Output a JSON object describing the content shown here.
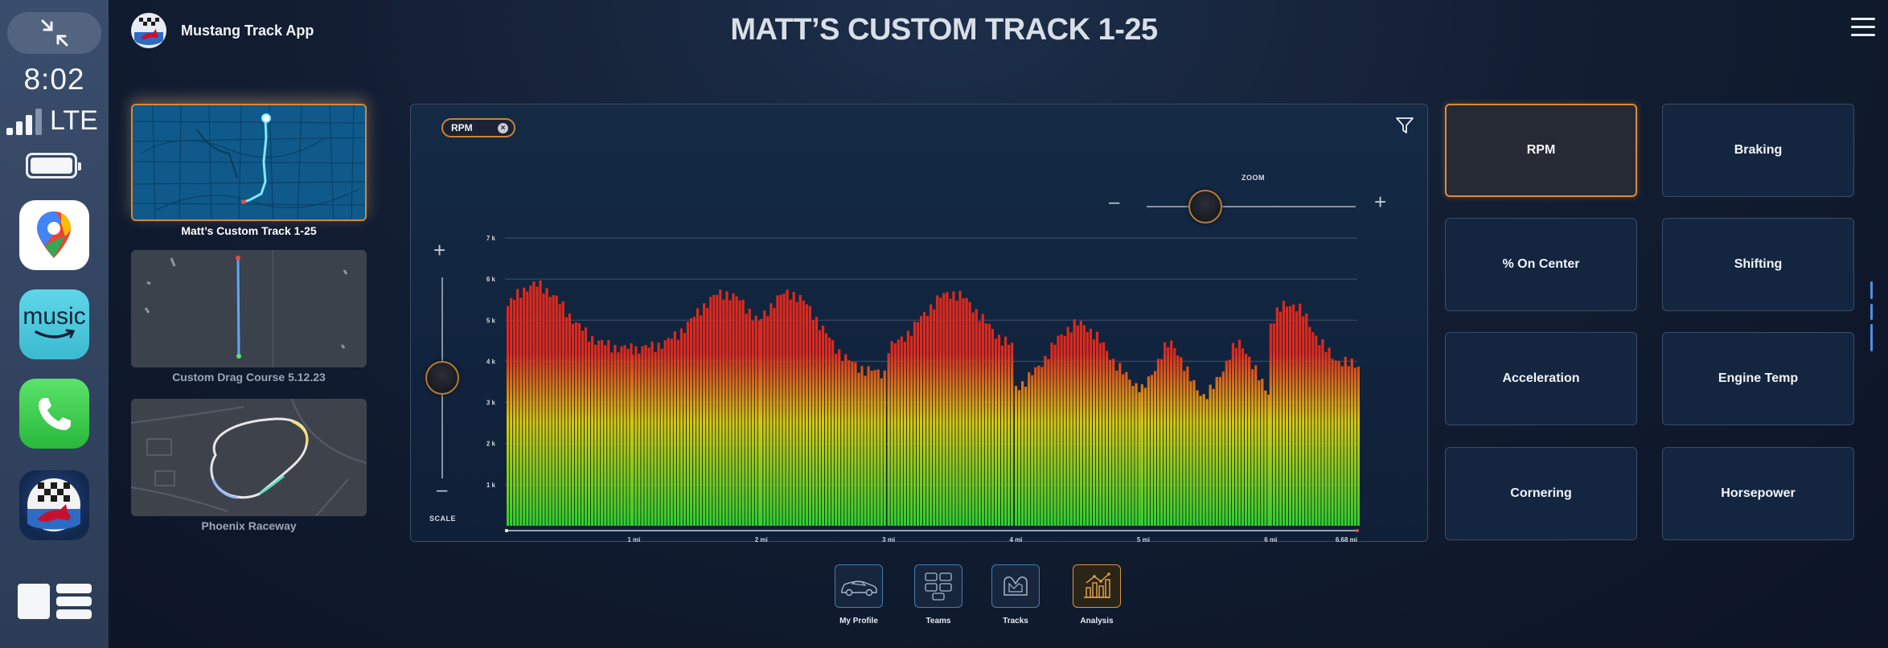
{
  "status": {
    "time": "8:02",
    "network": "LTE",
    "signal_bars": 3
  },
  "dock": {
    "apps": [
      {
        "name": "Maps",
        "icon": "maps-icon"
      },
      {
        "name": "Amazon Music",
        "icon": "amazon-music-icon",
        "label": "music"
      },
      {
        "name": "Phone",
        "icon": "phone-icon"
      },
      {
        "name": "Mustang Track App",
        "icon": "mustang-app-icon"
      }
    ]
  },
  "header": {
    "app_name": "Mustang Track App",
    "title": "MATT’S CUSTOM TRACK 1-25"
  },
  "tracks": [
    {
      "label": "Matt’s Custom Track 1-25",
      "selected": true
    },
    {
      "label": "Custom Drag Course 5.12.23",
      "selected": false
    },
    {
      "label": "Phoenix Raceway",
      "selected": false
    }
  ],
  "chart_panel": {
    "chip_label": "RPM",
    "zoom_label": "ZOOM",
    "zoom_minus": "–",
    "zoom_plus": "+",
    "zoom_level": 0.28,
    "scale_label": "SCALE",
    "scale_plus": "+",
    "scale_minus": "–",
    "scale_level": 0.5
  },
  "chart_data": {
    "type": "bar",
    "ylim": [
      0,
      7000
    ],
    "xlim": [
      0,
      6.68
    ],
    "y_ticks": [
      {
        "value": 1000,
        "label": "1 k"
      },
      {
        "value": 2000,
        "label": "2 k"
      },
      {
        "value": 3000,
        "label": "3 k"
      },
      {
        "value": 4000,
        "label": "4 k"
      },
      {
        "value": 5000,
        "label": "5 k"
      },
      {
        "value": 6000,
        "label": "6 k"
      },
      {
        "value": 7000,
        "label": "7 k"
      }
    ],
    "x_ticks": [
      {
        "value": 1,
        "label": "1 mi"
      },
      {
        "value": 2,
        "label": "2 mi"
      },
      {
        "value": 3,
        "label": "3 mi"
      },
      {
        "value": 4,
        "label": "4 mi"
      },
      {
        "value": 5,
        "label": "5 mi"
      },
      {
        "value": 6,
        "label": "6 mi"
      },
      {
        "value": 6.68,
        "label": "6.68 mi"
      }
    ],
    "segments": [
      {
        "start": 0.0,
        "end": 0.97,
        "low": 4300,
        "high": 5850,
        "shape": "peak-early"
      },
      {
        "start": 0.98,
        "end": 1.98,
        "low": 4300,
        "high": 5650,
        "shape": "peak-late"
      },
      {
        "start": 1.99,
        "end": 2.98,
        "low": 3700,
        "high": 5650,
        "shape": "peak-early"
      },
      {
        "start": 2.99,
        "end": 3.98,
        "low": 4200,
        "high": 5650,
        "shape": "peak-mid"
      },
      {
        "start": 3.99,
        "end": 4.97,
        "low": 3200,
        "high": 4900,
        "shape": "peak-mid"
      },
      {
        "start": 4.98,
        "end": 5.98,
        "low": 3100,
        "high": 4400,
        "shape": "double"
      },
      {
        "start": 5.99,
        "end": 6.68,
        "low": 3900,
        "high": 5400,
        "shape": "peak-early"
      }
    ],
    "colors": {
      "low": "#2fd12a",
      "mid": "#d7c80f",
      "high": "#e0281c"
    },
    "grid": true
  },
  "metrics": [
    {
      "label": "RPM",
      "active": true
    },
    {
      "label": "Braking",
      "active": false
    },
    {
      "label": "% On Center",
      "active": false
    },
    {
      "label": "Shifting",
      "active": false
    },
    {
      "label": "Acceleration",
      "active": false
    },
    {
      "label": "Engine Temp",
      "active": false
    },
    {
      "label": "Cornering",
      "active": false
    },
    {
      "label": "Horsepower",
      "active": false
    }
  ],
  "bottom_nav": [
    {
      "label": "My Profile",
      "icon": "car-icon",
      "active": false
    },
    {
      "label": "Teams",
      "icon": "teams-icon",
      "active": false
    },
    {
      "label": "Tracks",
      "icon": "track-icon",
      "active": false
    },
    {
      "label": "Analysis",
      "icon": "analysis-icon",
      "active": true
    }
  ],
  "accent": "#d88c3a"
}
